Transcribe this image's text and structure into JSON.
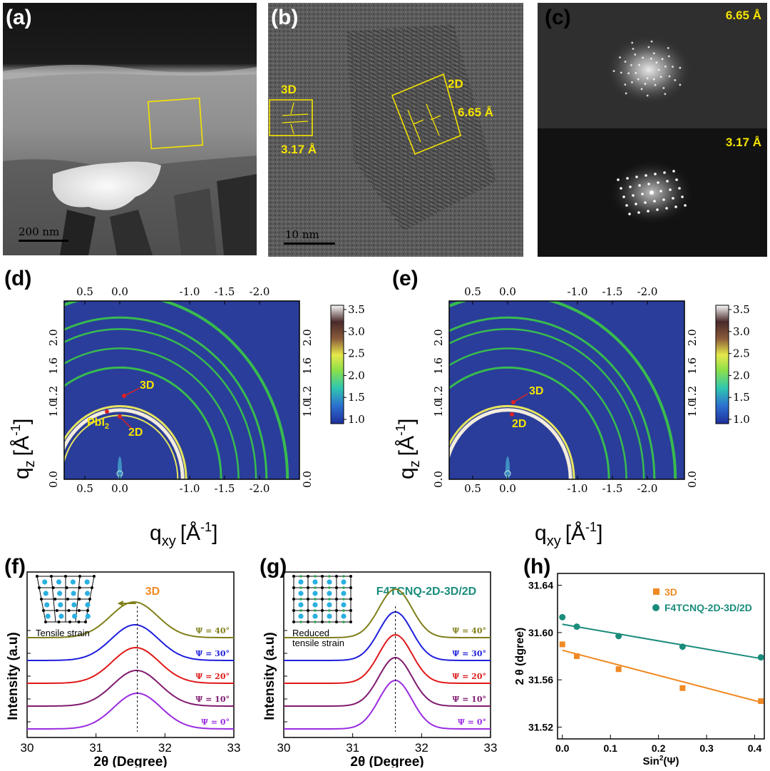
{
  "panels": {
    "a": {
      "label": "(a)",
      "scalebar": "200 nm"
    },
    "b": {
      "label": "(b)",
      "scalebar": "10 nm",
      "tag_3d": "3D",
      "tag_2d": "2D",
      "d_3d": "3.17 Å",
      "d_2d": "6.65 Å"
    },
    "c": {
      "label": "(c)",
      "top": "6.65 Å",
      "bottom": "3.17 Å"
    },
    "d": {
      "label": "(d)",
      "ann_3d": "3D",
      "ann_pbi": "PbI",
      "ann_pbi_sub": "2",
      "ann_2d": "2D"
    },
    "e": {
      "label": "(e)",
      "ann_3d": "3D",
      "ann_2d": "2D"
    },
    "f": {
      "label": "(f)",
      "title": "3D",
      "inset_caption": "Tensile strain"
    },
    "g": {
      "label": "(g)",
      "title": "F4TCNQ-2D-3D/2D",
      "inset_caption_1": "Reduced",
      "inset_caption_2": "tensile strain"
    },
    "h": {
      "label": "(h)"
    }
  },
  "giwaxs_axes": {
    "xlabel": "q",
    "xlabel_sub": "xy",
    "ylabel": "q",
    "ylabel_sub": "z",
    "unit": "[Å",
    "unit_sup": "-1",
    "unit_close": "]",
    "x_ticks": [
      "0.5",
      "0.0",
      "-1.0",
      "-1.5",
      "-2.0"
    ],
    "y_ticks": [
      "2.0",
      "1.6",
      "1.2",
      "1.0",
      "0.0"
    ],
    "colorbar_ticks": [
      "3.5",
      "3.0",
      "2.5",
      "2.0",
      "1.5",
      "1.0"
    ],
    "colors": {
      "background": "#2a3d9a",
      "ring_green": "#39c24a",
      "ring_yellow": "#f0ee5a",
      "ring_white": "#fff6e0"
    }
  },
  "chart_data": [
    {
      "type": "line",
      "panel": "f",
      "title": "3D",
      "xlabel": "2θ (Degree)",
      "ylabel": "Intensity (a.u)",
      "xlim": [
        30,
        33
      ],
      "x_ticks": [
        "30",
        "31",
        "32",
        "33"
      ],
      "peak_center_2theta": 31.6,
      "series": [
        {
          "name": "Ψ = 40°",
          "color": "#7f7f1a"
        },
        {
          "name": "Ψ = 30°",
          "color": "#1f1fdd"
        },
        {
          "name": "Ψ = 20°",
          "color": "#e01818"
        },
        {
          "name": "Ψ = 10°",
          "color": "#801a6e"
        },
        {
          "name": "Ψ = 0°",
          "color": "#9a2be0"
        }
      ]
    },
    {
      "type": "line",
      "panel": "g",
      "title": "F4TCNQ-2D-3D/2D",
      "xlabel": "2θ (Degree)",
      "ylabel": "Intensity (a.u)",
      "xlim": [
        30,
        33
      ],
      "x_ticks": [
        "30",
        "31",
        "32",
        "33"
      ],
      "peak_center_2theta": 31.62,
      "series": [
        {
          "name": "Ψ = 40°",
          "color": "#7f7f1a"
        },
        {
          "name": "Ψ = 30°",
          "color": "#1f1fdd"
        },
        {
          "name": "Ψ = 20°",
          "color": "#e01818"
        },
        {
          "name": "Ψ = 10°",
          "color": "#801a6e"
        },
        {
          "name": "Ψ = 0°",
          "color": "#9a2be0"
        }
      ]
    },
    {
      "type": "scatter",
      "panel": "h",
      "xlabel": "Sin",
      "xlabel_sup": "2",
      "xlabel_tail": "(Ψ)",
      "ylabel": "2 θ (dgree)",
      "xlim": [
        -0.01,
        0.42
      ],
      "ylim": [
        31.51,
        31.65
      ],
      "x_ticks": [
        "0.0",
        "0.1",
        "0.2",
        "0.3",
        "0.4"
      ],
      "y_ticks": [
        "31.52",
        "31.56",
        "31.60",
        "31.64"
      ],
      "legend": "top-right",
      "series": [
        {
          "name": "3D",
          "color": "#f08a24",
          "marker": "square",
          "points": [
            [
              0.0,
              31.59
            ],
            [
              0.03,
              31.58
            ],
            [
              0.117,
              31.569
            ],
            [
              0.25,
              31.553
            ],
            [
              0.413,
              31.542
            ]
          ],
          "fit": [
            [
              0.0,
              31.585
            ],
            [
              0.413,
              31.541
            ]
          ]
        },
        {
          "name": "F4TCNQ-2D-3D/2D",
          "color": "#1b8c7c",
          "marker": "circle",
          "points": [
            [
              0.0,
              31.613
            ],
            [
              0.03,
              31.605
            ],
            [
              0.117,
              31.597
            ],
            [
              0.25,
              31.588
            ],
            [
              0.413,
              31.579
            ]
          ],
          "fit": [
            [
              0.0,
              31.607
            ],
            [
              0.413,
              31.578
            ]
          ]
        }
      ]
    }
  ]
}
